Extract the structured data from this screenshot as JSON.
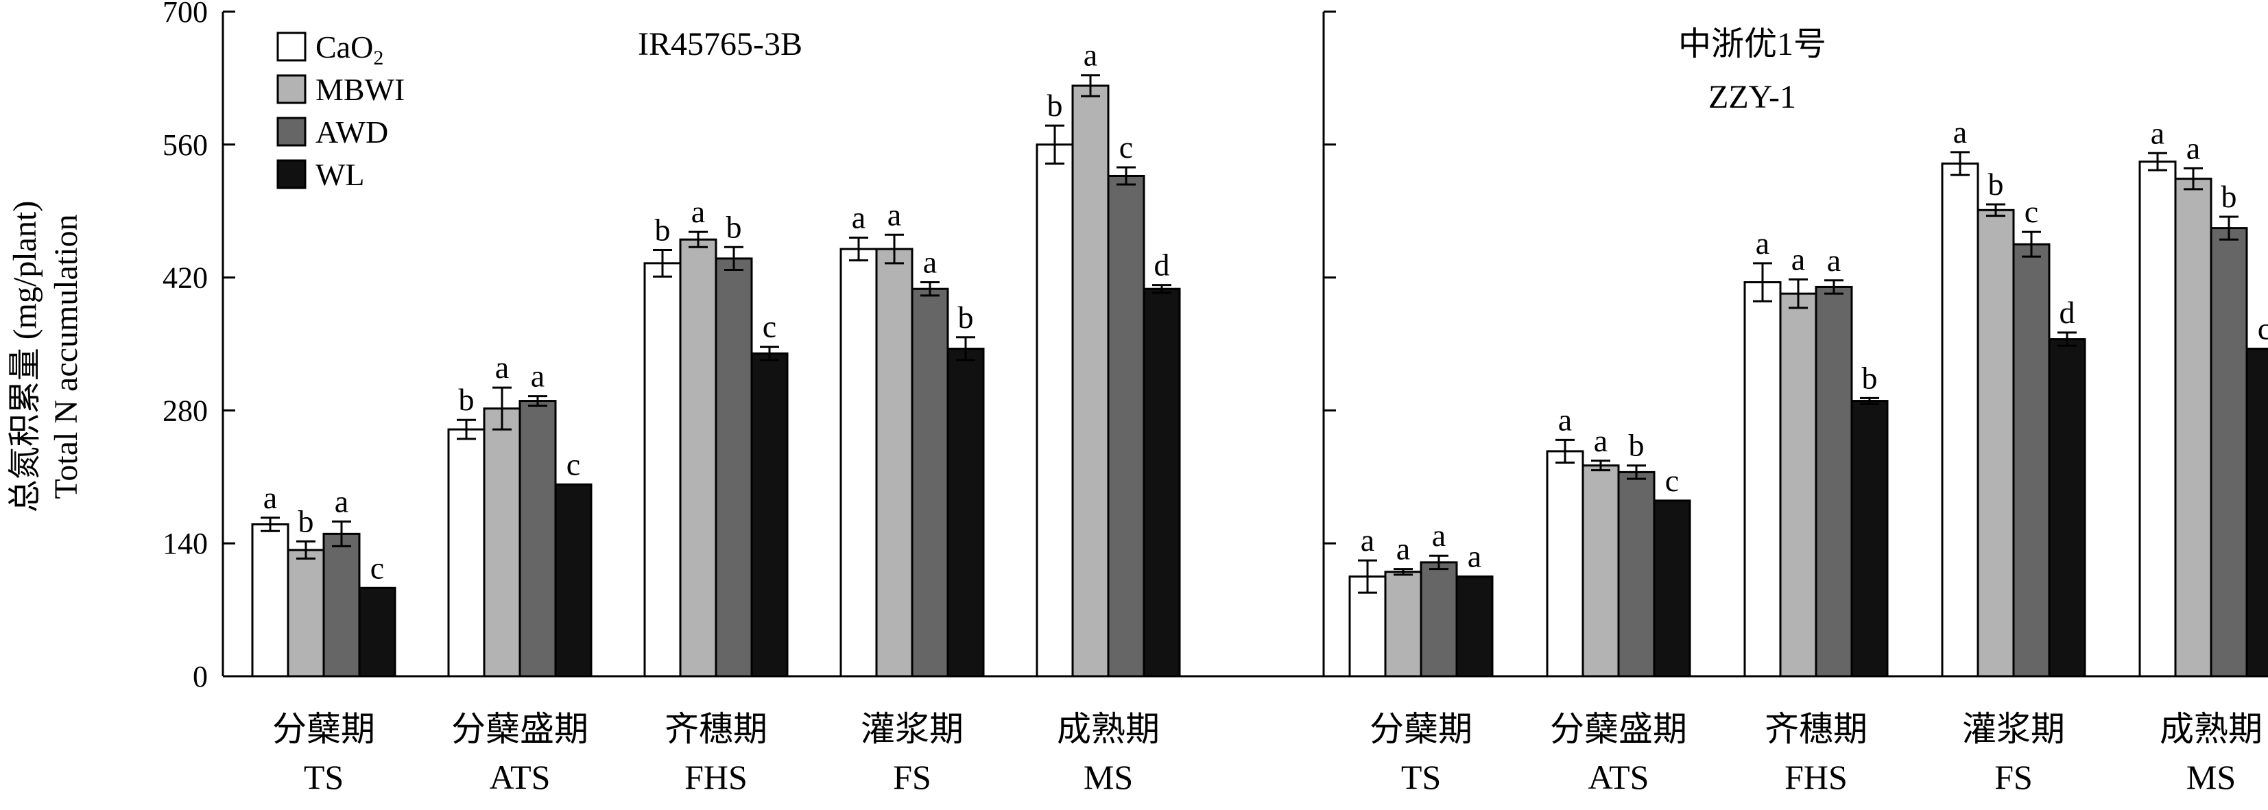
{
  "chart_data": {
    "type": "bar",
    "ylabel_cn": "总氮积累量 (mg/plant)",
    "ylabel_en": "Total N accumulation",
    "ylim": [
      0,
      700
    ],
    "yticks": [
      "0",
      "140",
      "280",
      "420",
      "560",
      "700"
    ],
    "categories_cn": [
      "分蘖期",
      "分蘖盛期",
      "齐穗期",
      "灌浆期",
      "成熟期"
    ],
    "categories_en": [
      "TS",
      "ATS",
      "FHS",
      "FS",
      "MS"
    ],
    "legend": {
      "items": [
        {
          "main": "CaO",
          "sub": "2",
          "color": "#ffffff"
        },
        {
          "main": "MBWI",
          "sub": "",
          "color": "#b3b3b3"
        },
        {
          "main": "AWD",
          "sub": "",
          "color": "#666666"
        },
        {
          "main": "WL",
          "sub": "",
          "color": "#111111"
        }
      ],
      "placement": "top-left"
    },
    "panels": [
      {
        "title_lines": [
          "IR45765-3B"
        ],
        "series": [
          {
            "name": "CaO2",
            "values": [
              160,
              260,
              435,
              450,
              560
            ],
            "errors": [
              7,
              10,
              14,
              12,
              20
            ],
            "letters": [
              "a",
              "b",
              "b",
              "a",
              "b"
            ]
          },
          {
            "name": "MBWI",
            "values": [
              133,
              282,
              460,
              450,
              622
            ],
            "errors": [
              9,
              22,
              8,
              15,
              11
            ],
            "letters": [
              "b",
              "a",
              "a",
              "a",
              "a"
            ]
          },
          {
            "name": "AWD",
            "values": [
              150,
              290,
              440,
              408,
              527
            ],
            "errors": [
              13,
              5,
              12,
              7,
              9
            ],
            "letters": [
              "a",
              "a",
              "b",
              "a",
              "c"
            ]
          },
          {
            "name": "WL",
            "values": [
              93,
              202,
              340,
              345,
              408
            ],
            "errors": [
              0,
              0,
              7,
              12,
              4
            ],
            "letters": [
              "c",
              "c",
              "c",
              "b",
              "d"
            ]
          }
        ]
      },
      {
        "title_lines": [
          "中浙优1号",
          "ZZY-1"
        ],
        "series": [
          {
            "name": "CaO2",
            "values": [
              105,
              237,
              415,
              540,
              542
            ],
            "errors": [
              17,
              12,
              20,
              12,
              9
            ],
            "letters": [
              "a",
              "a",
              "a",
              "a",
              "a"
            ]
          },
          {
            "name": "MBWI",
            "values": [
              110,
              222,
              403,
              491,
              524
            ],
            "errors": [
              3,
              5,
              15,
              6,
              11
            ],
            "letters": [
              "a",
              "a",
              "a",
              "b",
              "a"
            ]
          },
          {
            "name": "AWD",
            "values": [
              120,
              215,
              410,
              455,
              472
            ],
            "errors": [
              7,
              7,
              7,
              13,
              12
            ],
            "letters": [
              "a",
              "b",
              "a",
              "c",
              "b"
            ]
          },
          {
            "name": "WL",
            "values": [
              105,
              185,
              290,
              355,
              345
            ],
            "errors": [
              0,
              0,
              3,
              7,
              0
            ],
            "letters": [
              "a",
              "c",
              "b",
              "d",
              "c"
            ]
          }
        ]
      }
    ]
  }
}
